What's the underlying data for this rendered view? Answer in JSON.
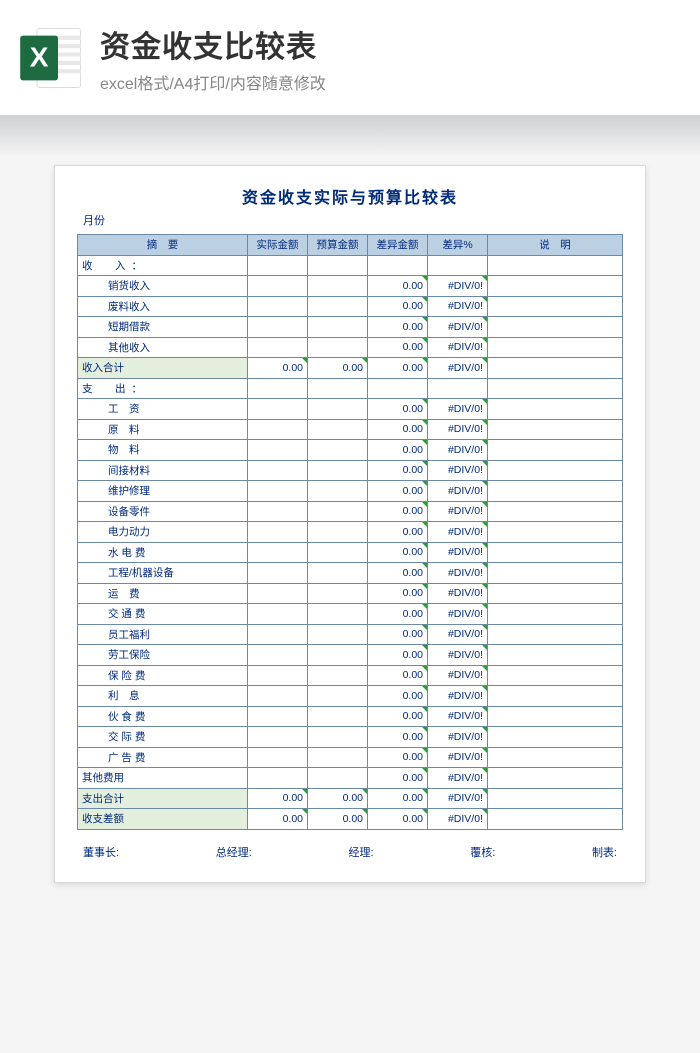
{
  "banner": {
    "title": "资金收支比较表",
    "subtitle": "excel格式/A4打印/内容随意修改",
    "icon_bg": "#1e6b41",
    "icon_letter": "X"
  },
  "sheet": {
    "title": "资金收支实际与预算比较表",
    "month_label": "月份",
    "headers": {
      "desc": "摘　要",
      "actual": "实际金额",
      "budget": "预算金额",
      "diff": "差异金额",
      "diff_pct": "差异%",
      "note": "说　明"
    },
    "income_section": "收　入：",
    "income_items": [
      {
        "label": "销货收入",
        "diff": "0.00",
        "pct": "#DIV/0!"
      },
      {
        "label": "废料收入",
        "diff": "0.00",
        "pct": "#DIV/0!"
      },
      {
        "label": "短期借款",
        "diff": "0.00",
        "pct": "#DIV/0!"
      },
      {
        "label": "其他收入",
        "diff": "0.00",
        "pct": "#DIV/0!"
      }
    ],
    "income_total": {
      "label": "收入合计",
      "actual": "0.00",
      "budget": "0.00",
      "diff": "0.00",
      "pct": "#DIV/0!"
    },
    "expense_section": "支　出：",
    "expense_items": [
      {
        "label": "工　资",
        "diff": "0.00",
        "pct": "#DIV/0!"
      },
      {
        "label": "原　料",
        "diff": "0.00",
        "pct": "#DIV/0!"
      },
      {
        "label": "物　料",
        "diff": "0.00",
        "pct": "#DIV/0!"
      },
      {
        "label": "间接材料",
        "diff": "0.00",
        "pct": "#DIV/0!"
      },
      {
        "label": "维护修理",
        "diff": "0.00",
        "pct": "#DIV/0!"
      },
      {
        "label": "设备零件",
        "diff": "0.00",
        "pct": "#DIV/0!"
      },
      {
        "label": "电力动力",
        "diff": "0.00",
        "pct": "#DIV/0!"
      },
      {
        "label": "水 电 费",
        "diff": "0.00",
        "pct": "#DIV/0!"
      },
      {
        "label": "工程/机器设备",
        "diff": "0.00",
        "pct": "#DIV/0!"
      },
      {
        "label": "运　费",
        "diff": "0.00",
        "pct": "#DIV/0!"
      },
      {
        "label": "交 通 费",
        "diff": "0.00",
        "pct": "#DIV/0!"
      },
      {
        "label": "员工福利",
        "diff": "0.00",
        "pct": "#DIV/0!"
      },
      {
        "label": "劳工保险",
        "diff": "0.00",
        "pct": "#DIV/0!"
      },
      {
        "label": "保 险 费",
        "diff": "0.00",
        "pct": "#DIV/0!"
      },
      {
        "label": "利　息",
        "diff": "0.00",
        "pct": "#DIV/0!"
      },
      {
        "label": "伙 食 费",
        "diff": "0.00",
        "pct": "#DIV/0!"
      },
      {
        "label": "交 际 费",
        "diff": "0.00",
        "pct": "#DIV/0!"
      },
      {
        "label": "广 告 费",
        "diff": "0.00",
        "pct": "#DIV/0!"
      }
    ],
    "other_expense": {
      "label": "其他费用",
      "diff": "0.00",
      "pct": "#DIV/0!"
    },
    "expense_total": {
      "label": "支出合计",
      "actual": "0.00",
      "budget": "0.00",
      "diff": "0.00",
      "pct": "#DIV/0!"
    },
    "balance": {
      "label": "收支差额",
      "actual": "0.00",
      "budget": "0.00",
      "diff": "0.00",
      "pct": "#DIV/0!"
    },
    "signatures": {
      "chairman": "董事长:",
      "gm": "总经理:",
      "manager": "经理:",
      "reviewer": "覆核:",
      "preparer": "制表:"
    }
  },
  "style": {
    "header_bg": "#bcd0e4",
    "border": "#6b8aa8",
    "subtotal_bg": "#e3efdc",
    "text": "#002a7a",
    "tri": "#2e9b3a"
  }
}
